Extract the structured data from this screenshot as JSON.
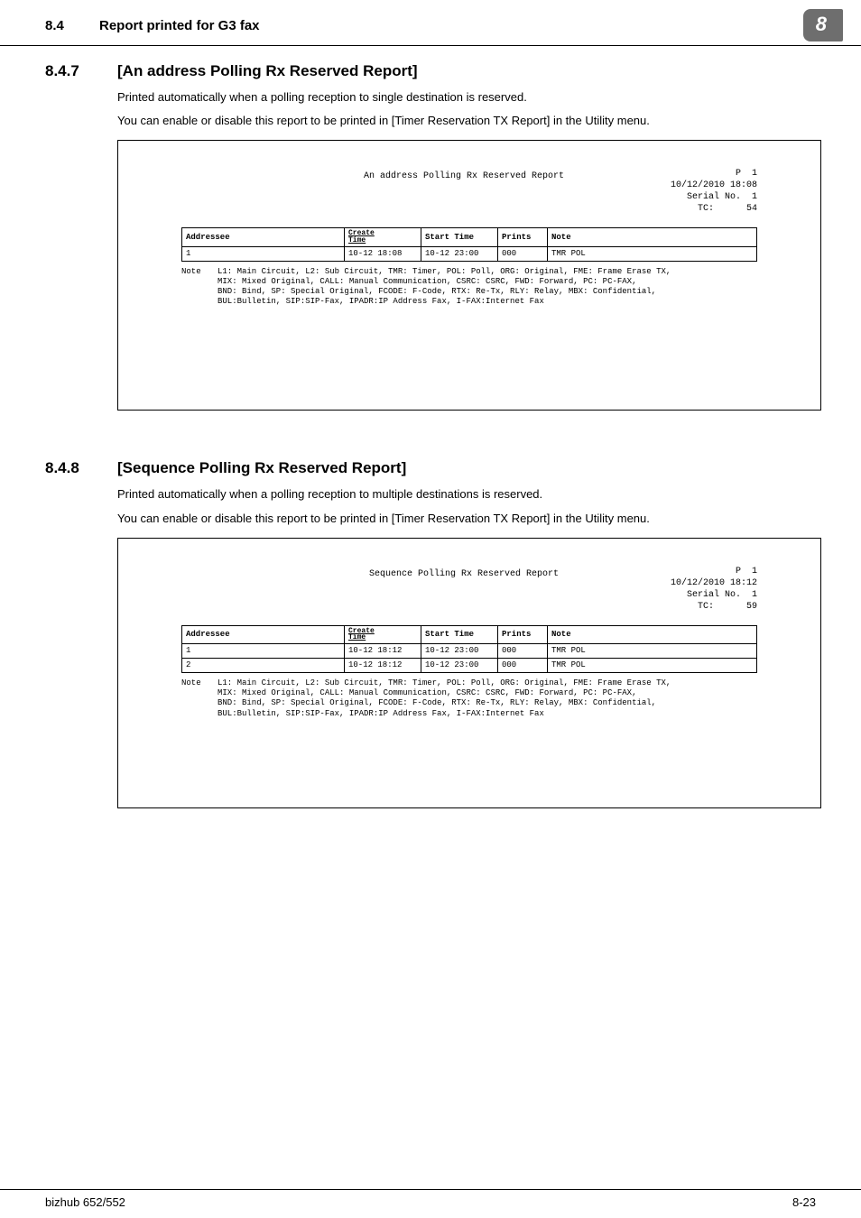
{
  "header": {
    "section_num": "8.4",
    "section_title": "Report printed for G3 fax",
    "chapter": "8"
  },
  "sections": [
    {
      "num": "8.4.7",
      "title": "[An address Polling Rx Reserved Report]",
      "body": [
        "Printed automatically when a polling reception to single destination is reserved.",
        "You can enable or disable this report to be printed in [Timer Reservation TX Report] in the Utility menu."
      ],
      "report": {
        "title": "An address Polling Rx Reserved Report",
        "meta_p": "P  1",
        "meta_date": "10/12/2010 18:08",
        "meta_serial_lbl": "Serial No.",
        "meta_serial": "1",
        "meta_tc_lbl": "TC:",
        "meta_tc": "54",
        "columns": [
          "Addressee",
          "Create\nTime",
          "Start Time",
          "Prints",
          "Note"
        ],
        "col_widths": [
          "180px",
          "85px",
          "85px",
          "55px",
          "auto"
        ],
        "rows": [
          [
            "1",
            "10-12 18:08",
            "10-12 23:00",
            "000",
            "TMR POL"
          ]
        ],
        "note_label": "Note",
        "note_text": "L1: Main Circuit, L2: Sub Circuit, TMR: Timer, POL: Poll, ORG: Original, FME: Frame Erase TX,\nMIX: Mixed Original, CALL: Manual Communication, CSRC: CSRC, FWD: Forward, PC: PC-FAX,\nBND: Bind, SP: Special Original, FCODE: F-Code, RTX: Re-Tx, RLY: Relay, MBX: Confidential,\nBUL:Bulletin, SIP:SIP-Fax, IPADR:IP Address Fax, I-FAX:Internet Fax"
      }
    },
    {
      "num": "8.4.8",
      "title": "[Sequence Polling Rx Reserved Report]",
      "body": [
        "Printed automatically when a polling reception to multiple destinations is reserved.",
        "You can enable or disable this report to be printed in [Timer Reservation TX Report] in the Utility menu."
      ],
      "report": {
        "title": "Sequence Polling Rx Reserved Report",
        "meta_p": "P  1",
        "meta_date": "10/12/2010 18:12",
        "meta_serial_lbl": "Serial No.",
        "meta_serial": "1",
        "meta_tc_lbl": "TC:",
        "meta_tc": "59",
        "columns": [
          "Addressee",
          "Create\nTime",
          "Start Time",
          "Prints",
          "Note"
        ],
        "col_widths": [
          "180px",
          "85px",
          "85px",
          "55px",
          "auto"
        ],
        "rows": [
          [
            "1",
            "10-12 18:12",
            "10-12 23:00",
            "000",
            "TMR POL"
          ],
          [
            "2",
            "10-12 18:12",
            "10-12 23:00",
            "000",
            "TMR POL"
          ]
        ],
        "note_label": "Note",
        "note_text": "L1: Main Circuit, L2: Sub Circuit, TMR: Timer, POL: Poll, ORG: Original, FME: Frame Erase TX,\nMIX: Mixed Original, CALL: Manual Communication, CSRC: CSRC, FWD: Forward, PC: PC-FAX,\nBND: Bind, SP: Special Original, FCODE: F-Code, RTX: Re-Tx, RLY: Relay, MBX: Confidential,\nBUL:Bulletin, SIP:SIP-Fax, IPADR:IP Address Fax, I-FAX:Internet Fax"
      }
    }
  ],
  "footer": {
    "left": "bizhub 652/552",
    "right": "8-23"
  }
}
